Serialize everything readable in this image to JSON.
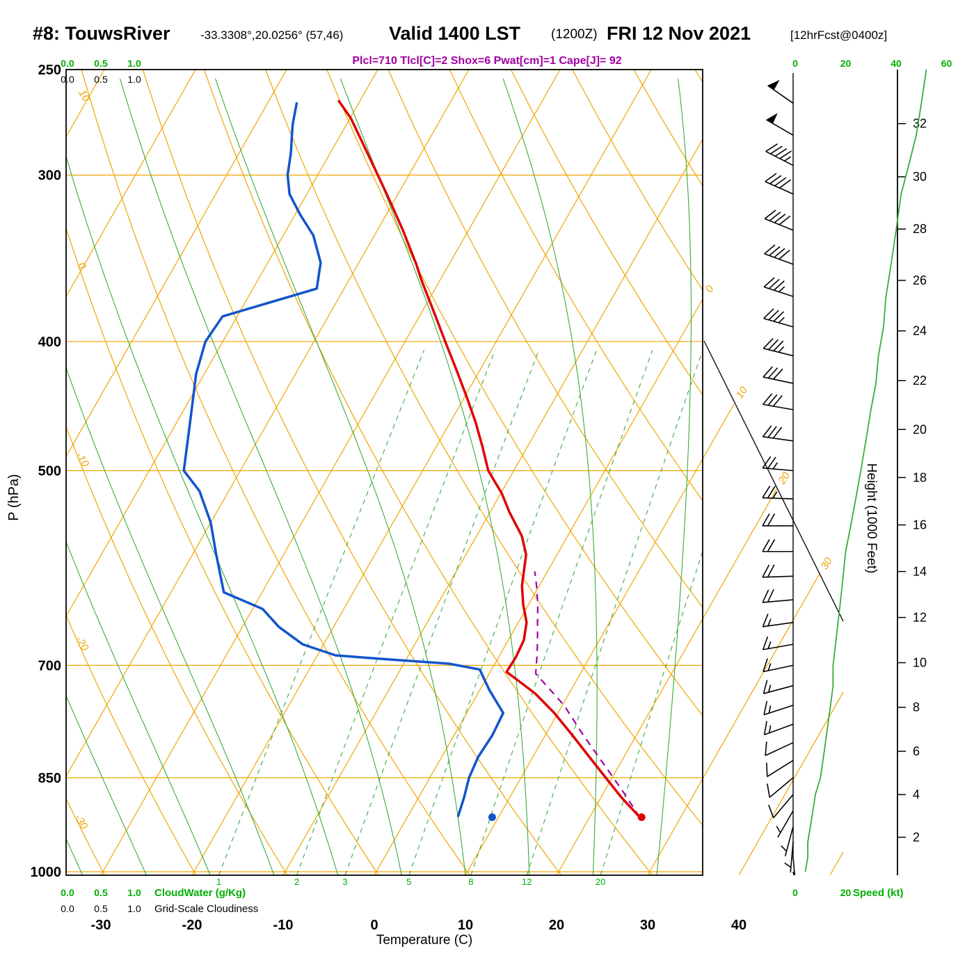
{
  "header": {
    "station": "#8: TouwsRiver",
    "coords": "-33.3308°,20.0256° (57,46)",
    "valid_main": "Valid 1400 LST",
    "valid_zulu": "(1200Z)",
    "valid_date": "FRI 12 Nov 2021",
    "forecast_tag": "[12hrFcst@0400z]",
    "stats_line": "Plcl=710 Tlcl[C]=2 Shox=6 Pwat[cm]=1 Cape[J]= 92"
  },
  "axes": {
    "pressure": {
      "label": "P (hPa)",
      "ticks": [
        250,
        300,
        400,
        500,
        700,
        850,
        1000
      ]
    },
    "temperature": {
      "label": "Temperature (C)",
      "ticks": [
        -30,
        -20,
        -10,
        0,
        10,
        20,
        30,
        40
      ]
    },
    "height": {
      "label": "Height (1000 Feet)",
      "ticks": [
        2,
        4,
        6,
        8,
        10,
        12,
        14,
        16,
        18,
        20,
        22,
        24,
        26,
        28,
        30,
        32
      ]
    },
    "speed": {
      "label": "Speed (kt)",
      "ticks_top": [
        0,
        20,
        40,
        60
      ],
      "ticks_bottom": [
        0,
        20
      ]
    },
    "cloudwater": {
      "label": "CloudWater (g/Kg)",
      "scale": [
        "0.0",
        "0.5",
        "1.0"
      ]
    },
    "cloudiness": {
      "label": "Grid-Scale Cloudiness",
      "scale": [
        "0.0",
        "0.5",
        "1.0"
      ]
    },
    "mixing_ratio_labels": [
      1,
      2,
      3,
      5,
      8,
      12,
      20
    ],
    "dry_adiabat_labels": [
      10,
      0,
      -10,
      -20,
      -30
    ],
    "isotherm_labels": [
      0,
      10,
      20,
      30
    ]
  },
  "chart_data": {
    "type": "line",
    "subtype": "skew-t log-p atmospheric sounding",
    "pressure_range": [
      250,
      1006
    ],
    "isotherm_step_c": 10,
    "dry_adiabat_step_c": 10,
    "moist_adiabat_surface_temps_c": [
      -39,
      -32,
      -25,
      -18,
      -11,
      -4,
      3,
      10,
      17,
      24,
      31,
      38
    ],
    "series": [
      {
        "name": "temperature",
        "label": "Environment temperature (C)",
        "color": "#e00000",
        "points": [
          [
            910,
            25.5
          ],
          [
            880,
            22.3
          ],
          [
            850,
            19.3
          ],
          [
            820,
            16.2
          ],
          [
            790,
            13.0
          ],
          [
            760,
            9.6
          ],
          [
            735,
            6.3
          ],
          [
            715,
            3.0
          ],
          [
            708,
            1.8
          ],
          [
            690,
            1.9
          ],
          [
            670,
            1.7
          ],
          [
            650,
            0.9
          ],
          [
            630,
            -0.6
          ],
          [
            610,
            -1.9
          ],
          [
            578,
            -3.4
          ],
          [
            560,
            -5.0
          ],
          [
            537,
            -7.9
          ],
          [
            520,
            -9.9
          ],
          [
            500,
            -12.8
          ],
          [
            480,
            -14.9
          ],
          [
            460,
            -17.2
          ],
          [
            440,
            -19.8
          ],
          [
            420,
            -22.6
          ],
          [
            400,
            -25.6
          ],
          [
            380,
            -28.7
          ],
          [
            360,
            -32.0
          ],
          [
            350,
            -33.6
          ],
          [
            330,
            -37.2
          ],
          [
            315,
            -40.2
          ],
          [
            300,
            -43.4
          ],
          [
            285,
            -46.8
          ],
          [
            272,
            -49.9
          ],
          [
            264,
            -52.3
          ]
        ]
      },
      {
        "name": "dewpoint",
        "label": "Dew point (C)",
        "color": "#1155cc",
        "points": [
          [
            908,
            5.5
          ],
          [
            880,
            5.0
          ],
          [
            850,
            4.3
          ],
          [
            820,
            4.0
          ],
          [
            790,
            4.2
          ],
          [
            760,
            4.0
          ],
          [
            730,
            1.0
          ],
          [
            705,
            -1.3
          ],
          [
            698,
            -5.0
          ],
          [
            693,
            -11.7
          ],
          [
            688,
            -18.0
          ],
          [
            675,
            -22.3
          ],
          [
            655,
            -26.0
          ],
          [
            635,
            -28.9
          ],
          [
            617,
            -34.2
          ],
          [
            578,
            -37.4
          ],
          [
            547,
            -40.0
          ],
          [
            518,
            -43.2
          ],
          [
            500,
            -46.2
          ],
          [
            454,
            -48.9
          ],
          [
            423,
            -50.9
          ],
          [
            400,
            -51.9
          ],
          [
            383,
            -51.6
          ],
          [
            365,
            -43.0
          ],
          [
            349,
            -44.2
          ],
          [
            333,
            -46.7
          ],
          [
            321,
            -49.5
          ],
          [
            310,
            -51.9
          ],
          [
            300,
            -53.3
          ],
          [
            289,
            -54.3
          ],
          [
            275,
            -55.9
          ],
          [
            265,
            -56.8
          ]
        ]
      },
      {
        "name": "parcel_ascent",
        "label": "Lifted parcel path",
        "color": "#a000a0",
        "style": "dashed",
        "points": [
          [
            910,
            25.5
          ],
          [
            870,
            22.0
          ],
          [
            830,
            18.2
          ],
          [
            790,
            14.2
          ],
          [
            750,
            10.2
          ],
          [
            710,
            5.1
          ],
          [
            690,
            4.2
          ],
          [
            670,
            3.2
          ],
          [
            650,
            2.1
          ],
          [
            630,
            1.0
          ],
          [
            610,
            -0.3
          ],
          [
            595,
            -1.4
          ]
        ]
      }
    ],
    "surface_markers": [
      {
        "name": "surface-temperature-dot",
        "pressure_hpa": 910,
        "temp_c": 25.7,
        "color": "#e00000"
      },
      {
        "name": "surface-dewpoint-dot",
        "pressure_hpa": 910,
        "temp_c": 9.3,
        "color": "#1155cc"
      }
    ],
    "wind_barbs_kt": [
      [
        1000,
        165,
        4
      ],
      [
        975,
        175,
        5
      ],
      [
        950,
        185,
        5
      ],
      [
        925,
        195,
        6
      ],
      [
        900,
        210,
        7
      ],
      [
        875,
        220,
        8
      ],
      [
        850,
        230,
        10
      ],
      [
        825,
        238,
        11
      ],
      [
        800,
        245,
        12
      ],
      [
        775,
        250,
        13
      ],
      [
        750,
        252,
        14
      ],
      [
        725,
        255,
        15
      ],
      [
        700,
        258,
        15
      ],
      [
        675,
        260,
        16
      ],
      [
        650,
        262,
        17
      ],
      [
        625,
        265,
        18
      ],
      [
        600,
        268,
        19
      ],
      [
        575,
        270,
        20
      ],
      [
        550,
        270,
        22
      ],
      [
        525,
        272,
        24
      ],
      [
        500,
        275,
        26
      ],
      [
        475,
        278,
        28
      ],
      [
        450,
        280,
        30
      ],
      [
        430,
        282,
        32
      ],
      [
        410,
        284,
        33
      ],
      [
        390,
        286,
        35
      ],
      [
        370,
        288,
        36
      ],
      [
        350,
        290,
        38
      ],
      [
        330,
        292,
        40
      ],
      [
        310,
        294,
        42
      ],
      [
        295,
        297,
        45
      ],
      [
        280,
        300,
        48
      ],
      [
        265,
        305,
        50
      ],
      [
        250,
        310,
        52
      ]
    ],
    "colors": {
      "grid": "#f0a500",
      "green": "#3aaa3a",
      "green_label": "#00ae00",
      "stats": "#a000a0",
      "frame": "#000000"
    }
  }
}
